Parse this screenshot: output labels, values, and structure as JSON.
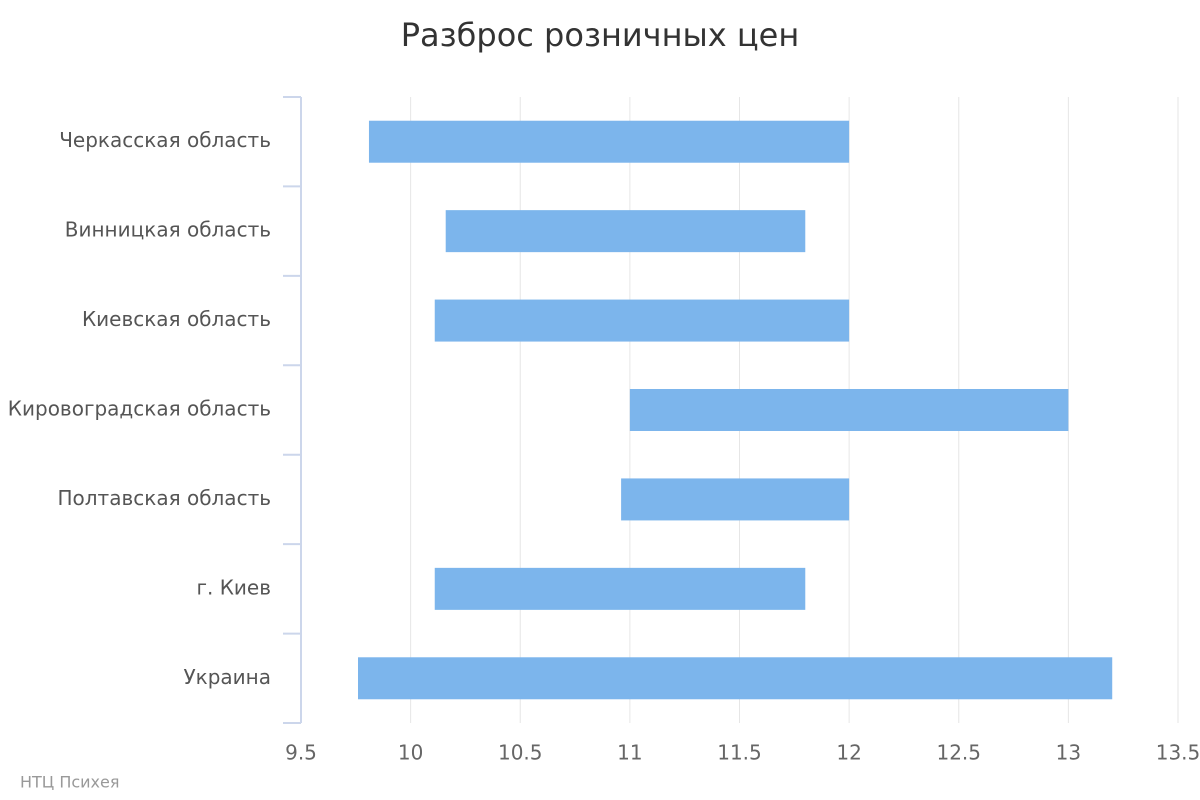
{
  "chart_data": {
    "type": "floating-bar",
    "orientation": "horizontal",
    "title": "Разброс розничных цен",
    "credit": "НТЦ Психея",
    "categories": [
      "Черкасская область",
      "Винницкая область",
      "Киевская область",
      "Кировоградская область",
      "Полтавская область",
      "г. Киев",
      "Украина"
    ],
    "low": [
      9.81,
      10.16,
      10.11,
      11.0,
      10.96,
      10.11,
      9.76
    ],
    "high": [
      12,
      11.8,
      12,
      13,
      12,
      11.8,
      13.2
    ],
    "color": "#7cb5ec",
    "xlim": [
      9.5,
      13.5
    ],
    "xticks": [
      9.5,
      10,
      10.5,
      11,
      11.5,
      12,
      12.5,
      13,
      13.5
    ],
    "grid": true
  }
}
